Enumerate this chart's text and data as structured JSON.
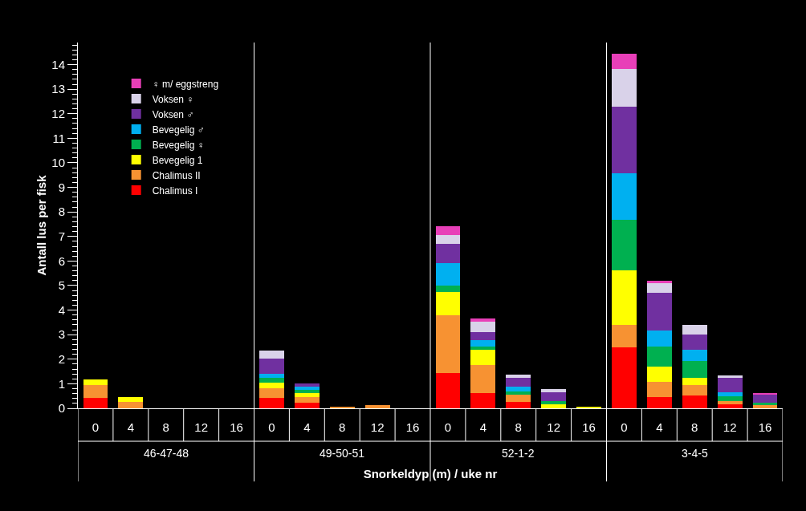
{
  "chart_data": {
    "type": "bar",
    "stacked": true,
    "xlabel": "Snorkeldyp (m) / uke nr",
    "ylabel": "Antall lus per fisk",
    "categories": [
      "0",
      "4",
      "8",
      "12",
      "16",
      "0",
      "4",
      "8",
      "12",
      "16",
      "0",
      "4",
      "8",
      "12",
      "16",
      "0",
      "4",
      "8",
      "12",
      "16"
    ],
    "annotations": [
      "46-47-48",
      "49-50-51",
      "52-1-2",
      "3-4-5"
    ],
    "ylim": [
      0,
      14.9
    ],
    "yticks": [
      0,
      1,
      2,
      3,
      4,
      5,
      6,
      7,
      8,
      9,
      10,
      11,
      12,
      13,
      14
    ],
    "grid": false,
    "legend": "top left",
    "series": [
      {
        "name": "Chalimus I",
        "color": "#ff0000",
        "values": [
          0.43,
          0,
          0,
          0,
          0,
          0.43,
          0.24,
          0,
          0,
          0,
          1.45,
          0.63,
          0.26,
          0,
          0,
          2.49,
          0.46,
          0.51,
          0.17,
          null
        ]
      },
      {
        "name": "Chalimus II",
        "color": "#f79232",
        "values": [
          0.52,
          0.25,
          0,
          0,
          0,
          0.39,
          0.23,
          0.04,
          0.13,
          0,
          2.33,
          1.14,
          0.28,
          0,
          0,
          0.92,
          0.61,
          0.45,
          0.13,
          0.13
        ]
      },
      {
        "name": "Bevegelig 1",
        "color": "#ffff00",
        "values": [
          0.22,
          0.22,
          0,
          0,
          0,
          0.22,
          0.16,
          0,
          0,
          0,
          0.95,
          0.62,
          0,
          0.16,
          0.04,
          2.2,
          0.64,
          0.29,
          0,
          0
        ]
      },
      {
        "name": "Bevegelig ♀",
        "color": "#00b050",
        "values": [
          0,
          0,
          0,
          0,
          0,
          0.21,
          0.12,
          0,
          0,
          0,
          0.26,
          0.14,
          0.16,
          0.13,
          0,
          2.06,
          0.82,
          0.68,
          0.18,
          0.11
        ]
      },
      {
        "name": "Bevegelig ♂",
        "color": "#00b0f0",
        "values": [
          0,
          0,
          0,
          0,
          0,
          0.15,
          0.13,
          0,
          0,
          0,
          0.91,
          0.26,
          0.18,
          0,
          0,
          1.9,
          0.65,
          0.45,
          0.17,
          0
        ]
      },
      {
        "name": "Voksen ♂",
        "color": "#7030a0",
        "values": [
          0,
          0,
          0,
          0,
          0,
          0.63,
          0.14,
          0,
          0,
          0,
          0.81,
          0.33,
          0.35,
          0.36,
          0,
          2.7,
          1.52,
          0.64,
          0.59,
          0.34
        ]
      },
      {
        "name": "Voksen ♀",
        "color": "#d9d2e9",
        "values": [
          0,
          0,
          0,
          0,
          0,
          0.33,
          0,
          0,
          0,
          0,
          0.34,
          0.41,
          0.13,
          0.12,
          0,
          1.55,
          0.41,
          0.37,
          0.11,
          0
        ]
      },
      {
        "name": "♀ m/ eggstreng",
        "color": "#e83fb8",
        "values": [
          0,
          0,
          0,
          0,
          0,
          0,
          0,
          0,
          0,
          0,
          0.37,
          0.13,
          0,
          0,
          0,
          0.61,
          0.09,
          0,
          0,
          0.03
        ]
      }
    ]
  }
}
